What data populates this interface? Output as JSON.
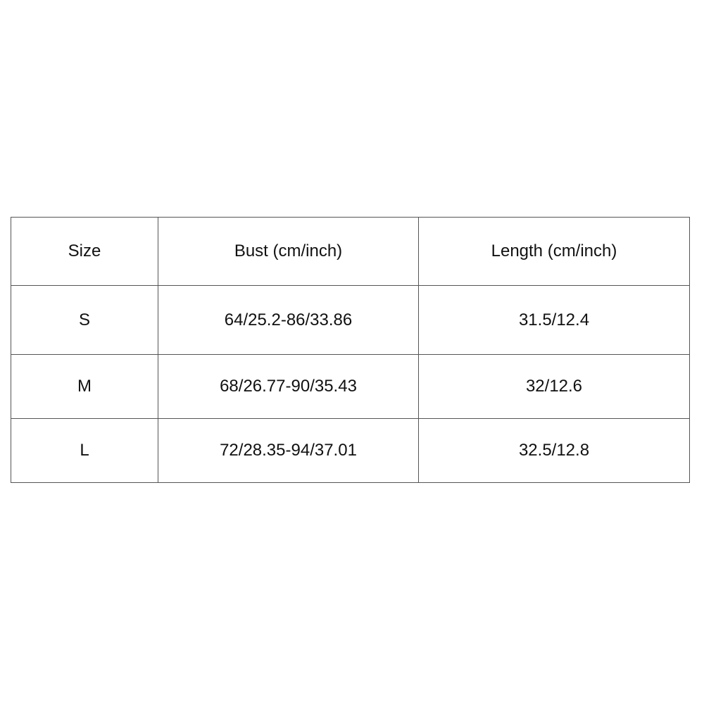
{
  "size_chart": {
    "headers": [
      "Size",
      "Bust (cm/inch)",
      "Length (cm/inch)"
    ],
    "rows": [
      [
        "S",
        "64/25.2-86/33.86",
        "31.5/12.4"
      ],
      [
        "M",
        "68/26.77-90/35.43",
        "32/12.6"
      ],
      [
        "L",
        "72/28.35-94/37.01",
        "32.5/12.8"
      ]
    ]
  }
}
